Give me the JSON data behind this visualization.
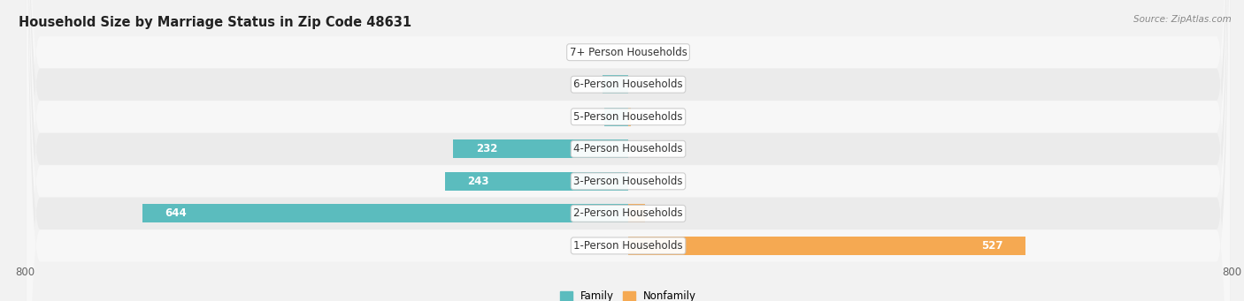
{
  "title": "Household Size by Marriage Status in Zip Code 48631",
  "source": "Source: ZipAtlas.com",
  "categories": [
    "7+ Person Households",
    "6-Person Households",
    "5-Person Households",
    "4-Person Households",
    "3-Person Households",
    "2-Person Households",
    "1-Person Households"
  ],
  "family_values": [
    0,
    34,
    32,
    232,
    243,
    644,
    0
  ],
  "nonfamily_values": [
    0,
    0,
    4,
    0,
    0,
    22,
    527
  ],
  "family_color": "#5bbcbe",
  "nonfamily_color": "#f5a952",
  "xlim_left": -800,
  "xlim_right": 800,
  "bar_height": 0.58,
  "background_color": "#f2f2f2",
  "row_color_light": "#f7f7f7",
  "row_color_dark": "#ebebeb",
  "title_fontsize": 10.5,
  "label_fontsize": 8.5,
  "value_fontsize": 8.5,
  "tick_fontsize": 8.5
}
